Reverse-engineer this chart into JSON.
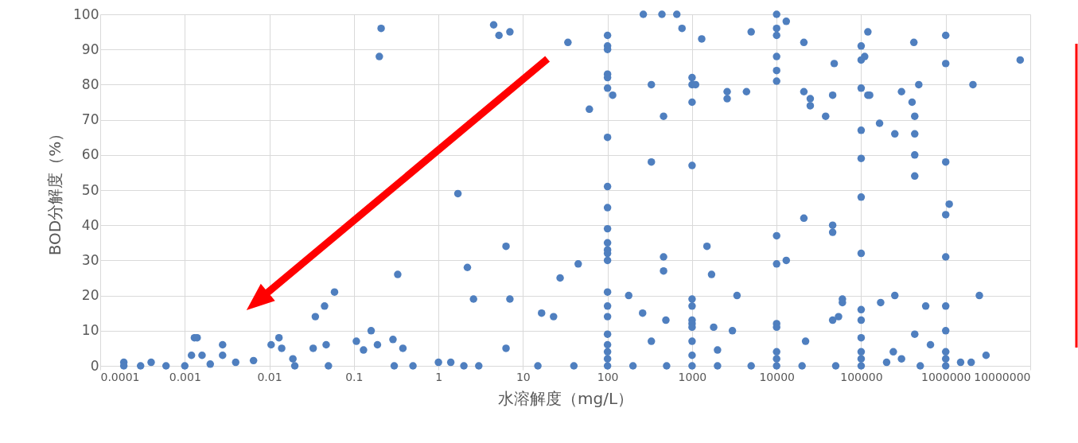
{
  "chart_data": {
    "type": "scatter",
    "xlabel": "水溶解度（mg/L）",
    "ylabel": "BOD分解度（%）",
    "log": "x",
    "grid": true,
    "marker": "circle",
    "xlim": [
      0.0001,
      10000000
    ],
    "xticks": [
      0.0001,
      0.001,
      0.01,
      0.1,
      1,
      10,
      100,
      1000,
      10000,
      100000,
      1000000,
      10000000
    ],
    "ylim": [
      0,
      100
    ],
    "yticks": [
      0,
      10,
      20,
      30,
      40,
      50,
      60,
      70,
      80,
      90,
      100
    ],
    "series": [
      {
        "color": "#4f7fbf",
        "x": [
          0.00019,
          0.00019,
          0.0003,
          0.0004,
          0.0006,
          0.001,
          0.0013,
          0.0014,
          0.0012,
          0.0016,
          0.0028,
          0.0028,
          0.002,
          0.004,
          0.0065,
          0.0105,
          0.013,
          0.014,
          0.019,
          0.02,
          0.035,
          0.045,
          0.059,
          0.033,
          0.047,
          0.05,
          0.107,
          0.13,
          0.16,
          0.19,
          0.2,
          0.21,
          0.29,
          0.33,
          0.38,
          0.3,
          0.5,
          1,
          1.4,
          1.7,
          2.2,
          2.6,
          2,
          3,
          4.5,
          5.2,
          7,
          6.3,
          6.3,
          7,
          15,
          16.6,
          23,
          27.5,
          34,
          40,
          45,
          61,
          100,
          100,
          100,
          100,
          100,
          100,
          100,
          100,
          100,
          100,
          100,
          100,
          100,
          100,
          100,
          100,
          100,
          100,
          100,
          100,
          100,
          100,
          115,
          178,
          200,
          260,
          265,
          330,
          330,
          330,
          440,
          460,
          460,
          460,
          490,
          500,
          660,
          760,
          1000,
          1000,
          1000,
          1000,
          1000,
          1000,
          1000,
          1000,
          1000,
          1000,
          1000,
          1000,
          1100,
          1300,
          1500,
          1700,
          1800,
          2000,
          2000,
          2600,
          2600,
          3000,
          3400,
          4400,
          5000,
          5000,
          10000,
          10000,
          10000,
          10000,
          10000,
          10000,
          10000,
          10000,
          10000,
          10000,
          10000,
          10000,
          10000,
          13000,
          13000,
          20000,
          21000,
          21000,
          21000,
          22000,
          25000,
          25000,
          38000,
          46000,
          46000,
          46000,
          46000,
          48000,
          50000,
          54000,
          60000,
          60000,
          100000,
          100000,
          100000,
          100000,
          100000,
          100000,
          100000,
          100000,
          100000,
          100000,
          100000,
          100000,
          100000,
          110000,
          120000,
          120000,
          126000,
          165000,
          170000,
          200000,
          240000,
          250000,
          250000,
          300000,
          300000,
          400000,
          420000,
          430000,
          430000,
          430000,
          430000,
          430000,
          480000,
          500000,
          580000,
          660000,
          1000000,
          1000000,
          1000000,
          1100000,
          1000000,
          1000000,
          1000000,
          1000000,
          1000000,
          1000000,
          1000000,
          1500000,
          2000000,
          2100000,
          2500000,
          3000000,
          7600000
        ],
        "values": [
          1,
          0,
          0,
          1,
          0,
          0,
          8,
          8,
          3,
          3,
          6,
          3,
          0.5,
          1,
          1.5,
          6,
          8,
          5,
          2,
          0,
          14,
          17,
          21,
          5,
          6,
          0,
          7,
          4.5,
          10,
          6,
          88,
          96,
          7.5,
          26,
          5,
          0,
          0,
          1,
          1,
          49,
          28,
          19,
          0,
          0,
          97,
          94,
          95,
          5,
          34,
          19,
          0,
          15,
          14,
          25,
          92,
          0,
          29,
          73,
          94,
          91,
          90,
          83,
          82,
          79,
          65,
          51,
          45,
          39,
          35,
          33,
          32,
          30,
          21,
          17,
          14,
          9,
          6,
          4,
          2,
          0,
          77,
          20,
          0,
          15,
          100,
          80,
          58,
          7,
          100,
          71,
          31,
          27,
          13,
          0,
          100,
          96,
          82,
          80,
          75,
          57,
          19,
          17,
          13,
          12,
          11,
          7,
          3,
          0,
          80,
          93,
          34,
          26,
          11,
          4.5,
          0,
          78,
          76,
          10,
          20,
          78,
          95,
          0,
          100,
          96,
          94,
          88,
          84,
          81,
          37,
          29,
          12,
          11,
          4,
          2,
          0,
          98,
          30,
          0,
          92,
          78,
          42,
          7,
          74,
          76,
          71,
          77,
          40,
          38,
          13,
          86,
          0,
          14,
          18,
          19,
          91,
          87,
          79,
          67,
          59,
          48,
          32,
          16,
          13,
          8,
          4,
          2,
          0,
          88,
          95,
          77,
          77,
          69,
          18,
          1,
          4,
          20,
          66,
          78,
          2,
          75,
          92,
          71,
          66,
          60,
          54,
          9,
          80,
          0,
          17,
          6,
          94,
          86,
          58,
          46,
          43,
          31,
          17,
          10,
          4,
          2,
          0,
          1,
          1,
          80,
          20,
          3,
          87
        ]
      }
    ]
  }
}
